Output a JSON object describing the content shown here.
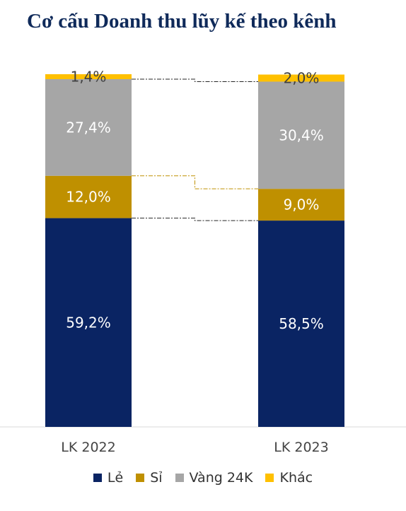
{
  "chart_data": {
    "type": "bar",
    "stacked": true,
    "percent_stacked": true,
    "title": "Cơ cấu Doanh thu lũy kế theo kênh",
    "categories": [
      "LK 2022",
      "LK 2023"
    ],
    "series": [
      {
        "name": "Lẻ",
        "color": "#0a2463",
        "label_color": "#ffffff",
        "values": [
          59.2,
          58.5
        ],
        "labels": [
          "59,2%",
          "58,5%"
        ]
      },
      {
        "name": "Sỉ",
        "color": "#bf9000",
        "label_color": "#ffffff",
        "values": [
          12.0,
          9.0
        ],
        "labels": [
          "12,0%",
          "9,0%"
        ]
      },
      {
        "name": "Vàng 24K",
        "color": "#a6a6a6",
        "label_color": "#ffffff",
        "values": [
          27.4,
          30.4
        ],
        "labels": [
          "27,4%",
          "30,4%"
        ]
      },
      {
        "name": "Khác",
        "color": "#ffc000",
        "label_color": "#404040",
        "values": [
          1.4,
          2.0
        ],
        "labels": [
          "1,4%",
          "2,0%"
        ]
      }
    ],
    "ylim": [
      0,
      100
    ],
    "legend_position": "bottom",
    "grid": false,
    "connector_lines": true
  }
}
